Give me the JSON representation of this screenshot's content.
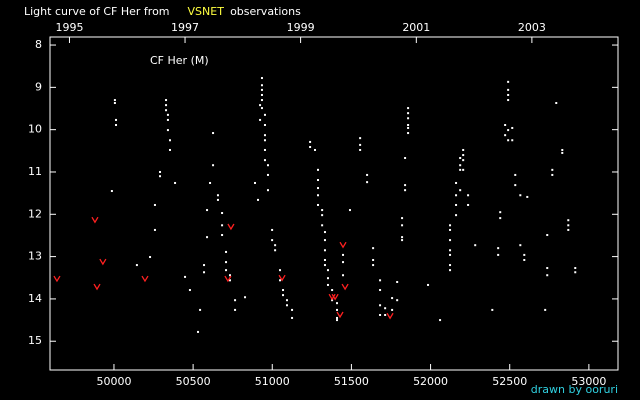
{
  "chart_data": {
    "type": "scatter",
    "title": "Light curve of CF Her from",
    "title_highlight": "VSNET",
    "title_end": "observations",
    "label": "CF Her (M)",
    "credit": "drawn by ooruri",
    "xlim": [
      49596,
      53184
    ],
    "ylim": [
      7.81,
      15.68
    ],
    "y_inverted": true,
    "xticks": [
      50000,
      50500,
      51000,
      51500,
      52000,
      52500,
      53000
    ],
    "yticks": [
      8,
      9,
      10,
      11,
      12,
      13,
      14,
      15
    ],
    "x2ticks": [
      {
        "value": 49719,
        "label": "1995"
      },
      {
        "value": 50449,
        "label": "1997"
      },
      {
        "value": 51179,
        "label": "1999"
      },
      {
        "value": 51910,
        "label": "2001"
      },
      {
        "value": 52640,
        "label": "2003"
      }
    ],
    "series": [
      {
        "color": "#ffffff",
        "marker": "dot",
        "x": [
          49987,
          50006,
          50006,
          50013,
          50013,
          50145,
          50228,
          50259,
          50259,
          50291,
          50291,
          50329,
          50329,
          50329,
          50341,
          50341,
          50341,
          50354,
          50354,
          50386,
          50449,
          50480,
          50531,
          50544,
          50569,
          50569,
          50588,
          50588,
          50607,
          50626,
          50626,
          50657,
          50657,
          50683,
          50683,
          50683,
          50708,
          50708,
          50708,
          50733,
          50733,
          50765,
          50765,
          50828,
          50891,
          50910,
          50923,
          50923,
          50935,
          50935,
          50935,
          50935,
          50935,
          50935,
          50954,
          50954,
          50954,
          50954,
          50954,
          50954,
          50973,
          50973,
          50973,
          50999,
          50999,
          51018,
          51018,
          51049,
          51049,
          51068,
          51068,
          51093,
          51093,
          51125,
          51125,
          51239,
          51239,
          51270,
          51289,
          51289,
          51289,
          51289,
          51289,
          51315,
          51315,
          51315,
          51333,
          51333,
          51333,
          51333,
          51333,
          51352,
          51352,
          51352,
          51378,
          51378,
          51409,
          51409,
          51409,
          51409,
          51447,
          51447,
          51447,
          51491,
          51555,
          51555,
          51555,
          51599,
          51599,
          51637,
          51637,
          51637,
          51681,
          51681,
          51681,
          51681,
          51713,
          51713,
          51757,
          51757,
          51789,
          51789,
          51820,
          51820,
          51820,
          51820,
          51839,
          51839,
          51839,
          51858,
          51858,
          51858,
          51858,
          51858,
          51858,
          51984,
          52060,
          52123,
          52123,
          52123,
          52123,
          52123,
          52123,
          52123,
          52161,
          52161,
          52161,
          52161,
          52187,
          52187,
          52187,
          52187,
          52206,
          52206,
          52206,
          52206,
          52237,
          52237,
          52282,
          52390,
          52427,
          52427,
          52440,
          52440,
          52471,
          52471,
          52490,
          52490,
          52490,
          52490,
          52490,
          52490,
          52516,
          52516,
          52535,
          52535,
          52567,
          52567,
          52592,
          52592,
          52611,
          52724,
          52737,
          52737,
          52737,
          52769,
          52769,
          52794,
          52832,
          52832,
          52870,
          52870,
          52870,
          52914,
          52914
        ],
        "values": [
          11.45,
          9.3,
          9.37,
          9.77,
          9.89,
          13.2,
          13.01,
          11.78,
          12.37,
          11.0,
          11.1,
          9.3,
          9.42,
          9.54,
          9.65,
          9.77,
          10.01,
          10.25,
          10.48,
          11.26,
          13.48,
          13.79,
          14.78,
          14.26,
          13.2,
          13.37,
          12.54,
          11.9,
          11.26,
          10.08,
          10.84,
          11.55,
          11.66,
          11.97,
          12.26,
          12.49,
          12.89,
          13.13,
          13.32,
          13.44,
          13.56,
          14.03,
          14.26,
          13.96,
          11.26,
          11.66,
          9.77,
          9.42,
          8.78,
          8.95,
          9.06,
          9.18,
          9.3,
          9.49,
          9.65,
          9.89,
          10.13,
          10.25,
          10.48,
          10.72,
          10.84,
          11.07,
          11.43,
          12.37,
          12.61,
          12.73,
          12.85,
          13.32,
          13.56,
          13.79,
          13.91,
          14.03,
          14.15,
          14.26,
          14.45,
          10.29,
          10.41,
          10.48,
          10.95,
          11.19,
          11.38,
          11.55,
          11.78,
          11.9,
          12.02,
          12.26,
          12.42,
          12.61,
          12.85,
          13.08,
          13.2,
          13.32,
          13.51,
          13.67,
          13.79,
          14.03,
          14.1,
          14.26,
          14.45,
          14.5,
          13.44,
          13.13,
          12.96,
          11.9,
          10.2,
          10.36,
          10.48,
          11.07,
          11.24,
          12.8,
          13.08,
          13.2,
          13.56,
          13.79,
          14.15,
          14.38,
          14.22,
          14.38,
          13.98,
          14.26,
          13.6,
          14.03,
          12.09,
          12.26,
          12.54,
          12.61,
          10.67,
          11.31,
          11.43,
          9.49,
          9.61,
          9.73,
          9.89,
          9.96,
          10.08,
          13.67,
          14.5,
          12.26,
          12.37,
          12.61,
          12.85,
          12.96,
          13.2,
          13.32,
          11.26,
          11.55,
          11.78,
          12.02,
          10.67,
          10.84,
          10.95,
          11.43,
          10.48,
          10.6,
          10.72,
          10.95,
          11.55,
          11.78,
          12.73,
          14.26,
          12.8,
          12.96,
          11.95,
          12.09,
          9.89,
          10.13,
          8.87,
          9.06,
          9.18,
          9.3,
          10.01,
          10.25,
          9.96,
          10.25,
          11.07,
          11.31,
          11.55,
          12.73,
          12.96,
          13.08,
          11.59,
          14.26,
          12.49,
          13.27,
          13.44,
          10.95,
          11.07,
          9.37,
          10.48,
          10.55,
          12.14,
          12.26,
          12.37,
          13.27,
          13.37
        ]
      },
      {
        "color": "#ff2020",
        "marker": "v",
        "x": [
          49640,
          49880,
          49893,
          49930,
          50196,
          50720,
          50739,
          51062,
          51378,
          51397,
          51428,
          51447,
          51460,
          51744
        ],
        "values": [
          13.53,
          12.14,
          13.72,
          13.13,
          13.53,
          13.53,
          12.3,
          13.51,
          13.96,
          13.96,
          14.38,
          12.73,
          13.72,
          14.41
        ]
      }
    ]
  }
}
